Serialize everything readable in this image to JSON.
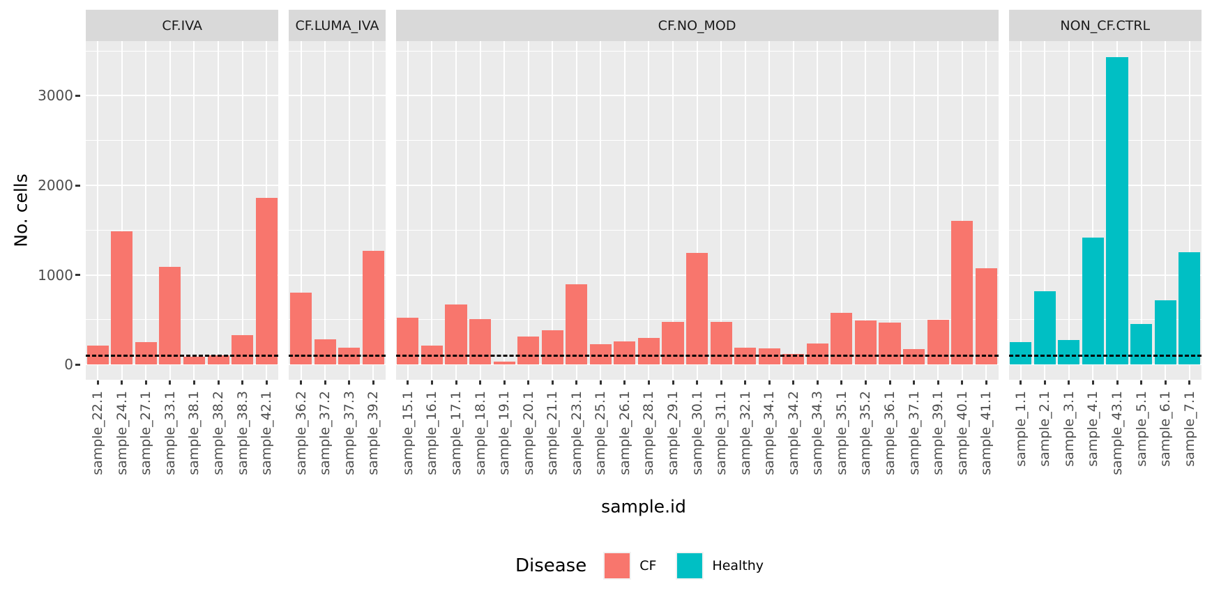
{
  "chart_data": {
    "type": "bar",
    "title": "",
    "xlabel": "sample.id",
    "ylabel": "No. cells",
    "y_ticks": [
      0,
      1000,
      2000,
      3000
    ],
    "y_minor_gridlines": [
      500,
      1500,
      2500,
      3500
    ],
    "ylim": [
      -170,
      3610
    ],
    "grid": true,
    "hline": {
      "value": 100,
      "style": "dashed",
      "color": "#000000"
    },
    "legend": {
      "title": "Disease",
      "position": "bottom",
      "entries": [
        {
          "label": "CF",
          "color": "#F8766D"
        },
        {
          "label": "Healthy",
          "color": "#00BFC4"
        }
      ]
    },
    "facets": [
      {
        "label": "CF.IVA",
        "disease": "CF",
        "color": "#F8766D",
        "categories": [
          "sample_22.1",
          "sample_24.1",
          "sample_27.1",
          "sample_33.1",
          "sample_38.1",
          "sample_38.2",
          "sample_38.3",
          "sample_42.1"
        ],
        "values": [
          215,
          1490,
          250,
          1090,
          90,
          100,
          325,
          1860
        ]
      },
      {
        "label": "CF.LUMA_IVA",
        "disease": "CF",
        "color": "#F8766D",
        "categories": [
          "sample_36.2",
          "sample_37.2",
          "sample_37.3",
          "sample_39.2"
        ],
        "values": [
          800,
          280,
          185,
          1270
        ]
      },
      {
        "label": "CF.NO_MOD",
        "disease": "CF",
        "color": "#F8766D",
        "categories": [
          "sample_15.1",
          "sample_16.1",
          "sample_17.1",
          "sample_18.1",
          "sample_19.1",
          "sample_20.1",
          "sample_21.1",
          "sample_23.1",
          "sample_25.1",
          "sample_26.1",
          "sample_28.1",
          "sample_29.1",
          "sample_30.1",
          "sample_31.1",
          "sample_32.1",
          "sample_34.1",
          "sample_34.2",
          "sample_34.3",
          "sample_35.1",
          "sample_35.2",
          "sample_36.1",
          "sample_37.1",
          "sample_39.1",
          "sample_40.1",
          "sample_41.1"
        ],
        "values": [
          525,
          215,
          670,
          510,
          30,
          315,
          385,
          895,
          230,
          255,
          295,
          475,
          1245,
          475,
          190,
          180,
          115,
          235,
          580,
          490,
          470,
          170,
          500,
          1600,
          1075
        ]
      },
      {
        "label": "NON_CF.CTRL",
        "disease": "Healthy",
        "color": "#00BFC4",
        "categories": [
          "sample_1.1",
          "sample_2.1",
          "sample_3.1",
          "sample_4.1",
          "sample_43.1",
          "sample_5.1",
          "sample_6.1",
          "sample_7.1"
        ],
        "values": [
          250,
          815,
          275,
          1420,
          3430,
          455,
          720,
          1250
        ]
      }
    ],
    "style": {
      "panel_background": "#EBEBEB",
      "strip_background": "#D9D9D9",
      "gridline_color": "#FFFFFF",
      "axis_text_color": "#4D4D4D"
    }
  }
}
